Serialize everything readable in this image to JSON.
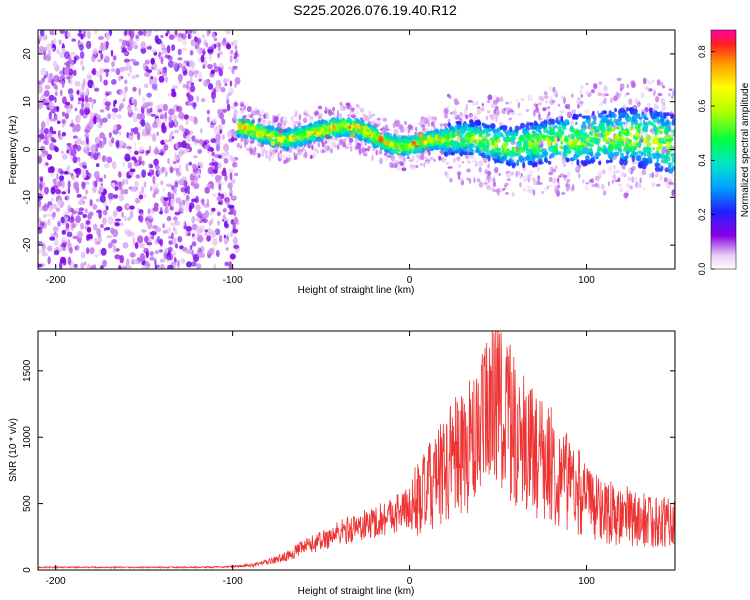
{
  "page": {
    "title": "S225.2026.076.19.40.R12"
  },
  "chart_data": [
    {
      "type": "heatmap",
      "xlabel": "Height of straight line (km)",
      "ylabel": "Frequency (Hz)",
      "xlim": [
        -210,
        150
      ],
      "ylim": [
        -25,
        25
      ],
      "xticks": [
        -200,
        -100,
        0,
        100
      ],
      "yticks": [
        -20,
        -10,
        0,
        10,
        20
      ],
      "colorbar": {
        "label": "Normalized spectral amplitude",
        "range": [
          0,
          0.88
        ],
        "ticks": [
          "0.0",
          "0.2",
          "0.4",
          "0.6",
          "0.8"
        ]
      },
      "noise_region_x": [
        -210,
        -97
      ],
      "signal_band_center": [
        [
          -97,
          4.8
        ],
        [
          -90,
          4.2
        ],
        [
          -80,
          3.0
        ],
        [
          -70,
          2.0
        ],
        [
          -60,
          3.0
        ],
        [
          -50,
          4.0
        ],
        [
          -40,
          4.8
        ],
        [
          -30,
          4.6
        ],
        [
          -20,
          2.8
        ],
        [
          -10,
          1.0
        ],
        [
          0,
          0.8
        ],
        [
          10,
          1.8
        ],
        [
          20,
          2.2
        ],
        [
          30,
          2.4
        ],
        [
          40,
          2.0
        ],
        [
          50,
          1.0
        ],
        [
          60,
          0.6
        ],
        [
          70,
          1.2
        ],
        [
          80,
          1.8
        ],
        [
          90,
          2.0
        ],
        [
          100,
          2.2
        ],
        [
          110,
          2.6
        ],
        [
          120,
          2.8
        ],
        [
          130,
          2.6
        ],
        [
          140,
          2.0
        ],
        [
          150,
          0.5
        ]
      ]
    },
    {
      "type": "line",
      "xlabel": "Height of straight line (km)",
      "ylabel": "SNR (10 * v/v)",
      "xlim": [
        -210,
        150
      ],
      "ylim": [
        0,
        1800
      ],
      "xticks": [
        -200,
        -100,
        0,
        100
      ],
      "yticks": [
        0,
        500,
        1000,
        1500
      ],
      "color": "#ee3333",
      "series": [
        {
          "x": [
            -210,
            -190,
            -170,
            -150,
            -130,
            -110,
            -100,
            -90,
            -80,
            -70,
            -60,
            -50,
            -40,
            -30,
            -20,
            -10,
            0,
            10,
            20,
            30,
            40,
            45,
            50,
            55,
            60,
            70,
            80,
            90,
            100,
            110,
            120,
            130,
            140,
            150
          ],
          "y": [
            20,
            20,
            20,
            20,
            20,
            22,
            25,
            35,
            60,
            100,
            170,
            220,
            280,
            320,
            360,
            420,
            470,
            600,
            750,
            880,
            1000,
            1150,
            1350,
            1150,
            1000,
            880,
            780,
            650,
            520,
            450,
            400,
            380,
            360,
            350
          ]
        }
      ]
    }
  ]
}
